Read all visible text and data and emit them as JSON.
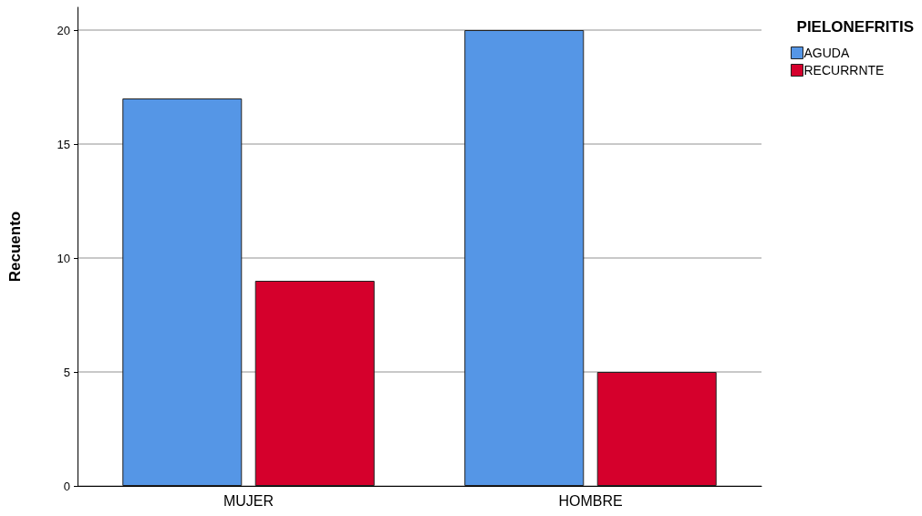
{
  "chart_data": {
    "type": "bar",
    "ylabel": "Recuento",
    "legend_title": "PIELONEFRITIS",
    "categories": [
      "MUJER",
      "HOMBRE"
    ],
    "series": [
      {
        "name": "AGUDA",
        "color": "#5596e6",
        "values": [
          17,
          20
        ]
      },
      {
        "name": "RECURRNTE",
        "color": "#d5002c",
        "values": [
          9,
          5
        ]
      }
    ],
    "ylim": [
      0,
      21
    ],
    "yticks": [
      0,
      5,
      10,
      15,
      20
    ],
    "grid": "y",
    "legend": "right"
  }
}
